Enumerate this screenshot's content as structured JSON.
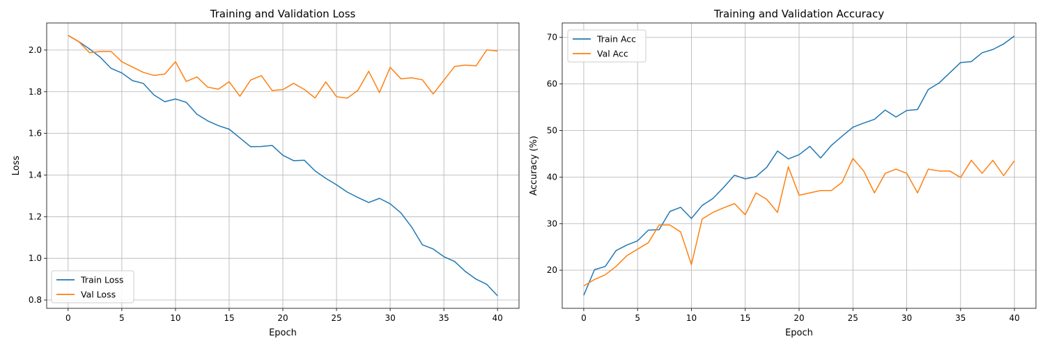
{
  "chart_data": [
    {
      "type": "line",
      "title": "Training and Validation Loss",
      "xlabel": "Epoch",
      "ylabel": "Loss",
      "xlim": [
        -2,
        42
      ],
      "ylim": [
        0.76,
        2.13
      ],
      "xticks": [
        0,
        5,
        10,
        15,
        20,
        25,
        30,
        35,
        40
      ],
      "yticks": [
        0.8,
        1.0,
        1.2,
        1.4,
        1.6,
        1.8,
        2.0
      ],
      "ytick_labels": [
        "0.8",
        "1.0",
        "1.2",
        "1.4",
        "1.6",
        "1.8",
        "2.0"
      ],
      "grid": true,
      "legend_position": "lower-left",
      "x": [
        0,
        1,
        2,
        3,
        4,
        5,
        6,
        7,
        8,
        9,
        10,
        11,
        12,
        13,
        14,
        15,
        16,
        17,
        18,
        19,
        20,
        21,
        22,
        23,
        24,
        25,
        26,
        27,
        28,
        29,
        30,
        31,
        32,
        33,
        34,
        35,
        36,
        37,
        38,
        39,
        40
      ],
      "series": [
        {
          "name": "Train Loss",
          "color": "#1f77b4",
          "values": [
            2.07,
            2.04,
            2.005,
            1.965,
            1.912,
            1.89,
            1.853,
            1.84,
            1.784,
            1.752,
            1.765,
            1.749,
            1.692,
            1.66,
            1.637,
            1.62,
            1.578,
            1.536,
            1.537,
            1.542,
            1.495,
            1.469,
            1.471,
            1.42,
            1.384,
            1.353,
            1.318,
            1.292,
            1.268,
            1.288,
            1.262,
            1.218,
            1.15,
            1.065,
            1.045,
            1.008,
            0.985,
            0.937,
            0.9,
            0.875,
            0.82
          ]
        },
        {
          "name": "Val Loss",
          "color": "#ff7f0e",
          "values": [
            2.07,
            2.04,
            1.987,
            1.993,
            1.993,
            1.944,
            1.918,
            1.893,
            1.878,
            1.885,
            1.944,
            1.849,
            1.871,
            1.822,
            1.812,
            1.848,
            1.778,
            1.856,
            1.877,
            1.806,
            1.81,
            1.84,
            1.811,
            1.77,
            1.847,
            1.776,
            1.769,
            1.807,
            1.898,
            1.796,
            1.917,
            1.862,
            1.867,
            1.857,
            1.789,
            1.855,
            1.921,
            1.928,
            1.924,
            2.001,
            1.995
          ]
        }
      ]
    },
    {
      "type": "line",
      "title": "Training and Validation Accuracy",
      "xlabel": "Epoch",
      "ylabel": "Accuracy (%)",
      "xlim": [
        -2,
        42
      ],
      "ylim": [
        11.8,
        73.1
      ],
      "xticks": [
        0,
        5,
        10,
        15,
        20,
        25,
        30,
        35,
        40
      ],
      "yticks": [
        20,
        30,
        40,
        50,
        60,
        70
      ],
      "ytick_labels": [
        "20",
        "30",
        "40",
        "50",
        "60",
        "70"
      ],
      "grid": true,
      "legend_position": "upper-left",
      "x": [
        0,
        1,
        2,
        3,
        4,
        5,
        6,
        7,
        8,
        9,
        10,
        11,
        12,
        13,
        14,
        15,
        16,
        17,
        18,
        19,
        20,
        21,
        22,
        23,
        24,
        25,
        26,
        27,
        28,
        29,
        30,
        31,
        32,
        33,
        34,
        35,
        36,
        37,
        38,
        39,
        40
      ],
      "series": [
        {
          "name": "Train Acc",
          "color": "#1f77b4",
          "values": [
            14.6,
            20.1,
            20.8,
            24.2,
            25.4,
            26.3,
            28.6,
            28.7,
            32.6,
            33.5,
            31.1,
            33.9,
            35.4,
            37.8,
            40.4,
            39.6,
            40.1,
            42.1,
            45.6,
            43.9,
            44.8,
            46.6,
            44.1,
            46.8,
            48.8,
            50.7,
            51.6,
            52.4,
            54.4,
            52.9,
            54.3,
            54.5,
            58.8,
            60.2,
            62.4,
            64.6,
            64.8,
            66.7,
            67.4,
            68.6,
            70.3
          ]
        },
        {
          "name": "Val Acc",
          "color": "#ff7f0e",
          "values": [
            16.6,
            18.0,
            19.0,
            20.8,
            23.1,
            24.5,
            25.9,
            29.7,
            29.7,
            28.2,
            21.2,
            31.0,
            32.4,
            33.4,
            34.3,
            31.9,
            36.6,
            35.2,
            32.4,
            42.2,
            36.1,
            36.6,
            37.1,
            37.1,
            38.9,
            44.0,
            41.3,
            36.6,
            40.8,
            41.7,
            40.8,
            36.6,
            41.7,
            41.3,
            41.3,
            39.9,
            43.6,
            40.8,
            43.6,
            40.3,
            43.5
          ]
        }
      ]
    }
  ]
}
